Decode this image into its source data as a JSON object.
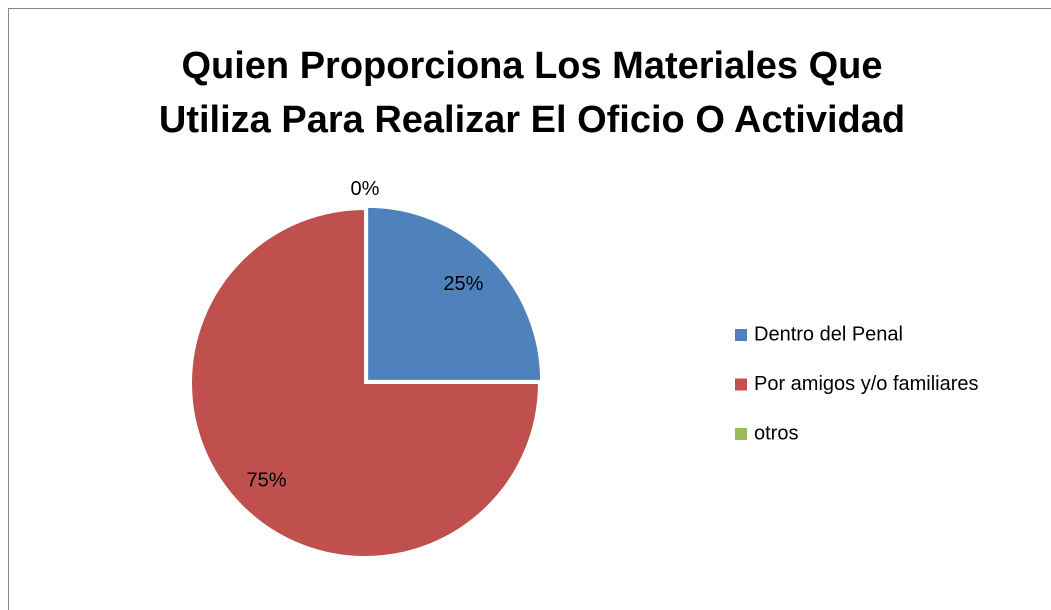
{
  "chart_data": {
    "type": "pie",
    "title": [
      "Quien Proporciona Los Materiales Que",
      "Utiliza Para Realizar El Oficio O Actividad"
    ],
    "categories": [
      "Dentro del Penal",
      "Por amigos y/o familiares",
      "otros"
    ],
    "values": [
      25,
      75,
      0
    ],
    "value_labels": [
      "25%",
      "75%",
      "0%"
    ],
    "colors": [
      "#4f81bd",
      "#c0504d",
      "#9bbb59"
    ],
    "legend": "right"
  }
}
